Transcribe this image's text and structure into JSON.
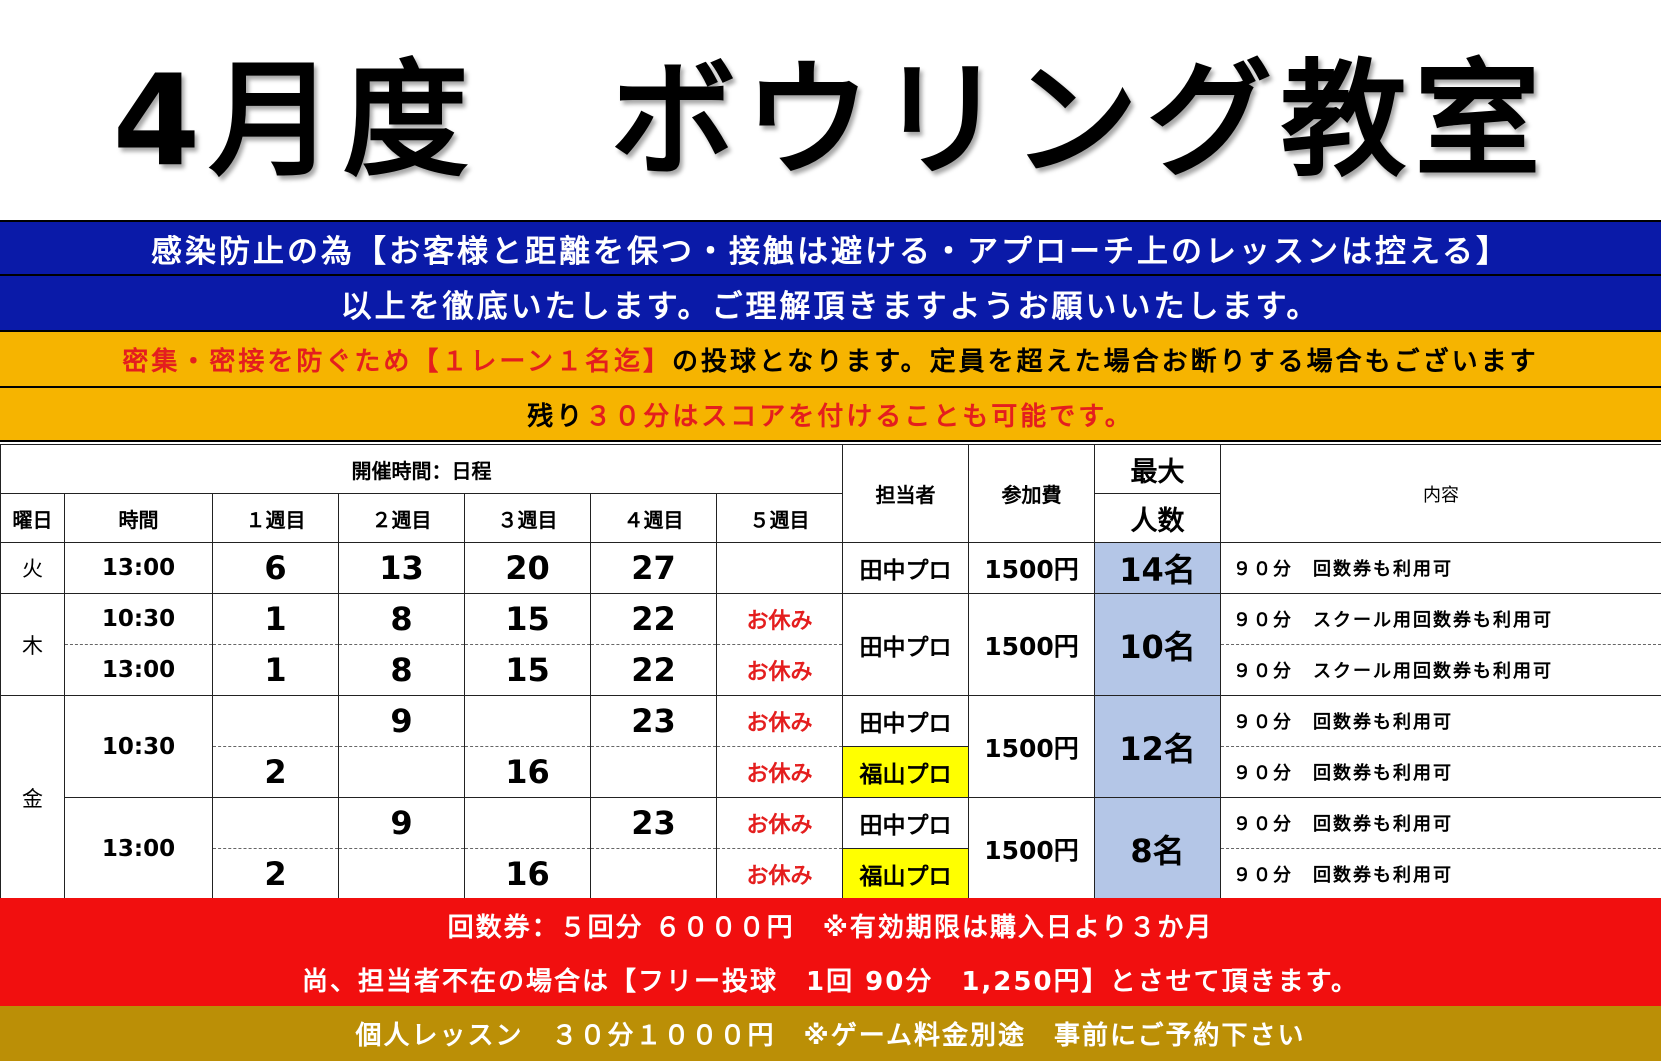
{
  "title": "4月度　ボウリング教室",
  "notices": {
    "line1": "感染防止の為【お客様と距離を保つ・接触は避ける・アプローチ上のレッスンは控える】",
    "line2": "以上を徹底いたします。ご理解頂きますようお願いいたします。",
    "line3_red": "密集・密接を防ぐため【１レーン１名迄】",
    "line3_black": "の投球となります。定員を超えた場合お断りする場合もございます",
    "line4_black": "残り",
    "line4_red": "３０分はスコアを付けることも可能です。"
  },
  "table": {
    "header_span": "開催時間：日程",
    "col_day": "曜日",
    "col_time": "時間",
    "weeks": [
      "１週目",
      "２週目",
      "３週目",
      "４週目",
      "５週目"
    ],
    "col_instructor": "担当者",
    "col_fee": "参加費",
    "col_max_top": "最大",
    "col_max_bottom": "人数",
    "col_content": "内容",
    "rest_label": "お休み",
    "tue": {
      "day": "火",
      "time": "13:00",
      "dates": [
        "6",
        "13",
        "20",
        "27",
        ""
      ],
      "instructor": "田中プロ",
      "fee": "1500円",
      "cap": "14名",
      "content": "９０分　回数券も利用可"
    },
    "thu": {
      "day": "木",
      "rows": [
        {
          "time": "10:30",
          "dates": [
            "1",
            "8",
            "15",
            "22"
          ],
          "content": "９０分　スクール用回数券も利用可"
        },
        {
          "time": "13:00",
          "dates": [
            "1",
            "8",
            "15",
            "22"
          ],
          "content": "９０分　スクール用回数券も利用可"
        }
      ],
      "instructor": "田中プロ",
      "fee": "1500円",
      "cap": "10名"
    },
    "fri": {
      "day": "金",
      "blocks": [
        {
          "time": "10:30",
          "fee": "1500円",
          "cap": "12名",
          "rows": [
            {
              "dates": [
                "",
                "9",
                "",
                "23"
              ],
              "instructor": "田中プロ",
              "content": "９０分　回数券も利用可"
            },
            {
              "dates": [
                "2",
                "",
                "16",
                ""
              ],
              "instructor": "福山プロ",
              "content": "９０分　回数券も利用可"
            }
          ]
        },
        {
          "time": "13:00",
          "fee": "1500円",
          "cap": "8名",
          "rows": [
            {
              "dates": [
                "",
                "9",
                "",
                "23"
              ],
              "instructor": "田中プロ",
              "content": "９０分　回数券も利用可"
            },
            {
              "dates": [
                "2",
                "",
                "16",
                ""
              ],
              "instructor": "福山プロ",
              "content": "９０分　回数券も利用可"
            }
          ]
        }
      ]
    }
  },
  "footer": {
    "line1": "回数券：５回分 ６０００円　※有効期限は購入日より３か月",
    "line2": "尚、担当者不在の場合は【フリー投球　1回 90分　1,250円】とさせて頂きます。",
    "line3": "個人レッスン　３０分１０００円　※ゲーム料金別途　事前にご予約下さい"
  },
  "colors": {
    "blue_band": "#0a1aa8",
    "orange_band": "#f6b400",
    "red_band": "#f10f0f",
    "gold_band": "#bb8f06",
    "capacity_fill": "#b4c6e7",
    "highlight_yellow": "#ffff00",
    "accent_red_text": "#e41e1e"
  }
}
